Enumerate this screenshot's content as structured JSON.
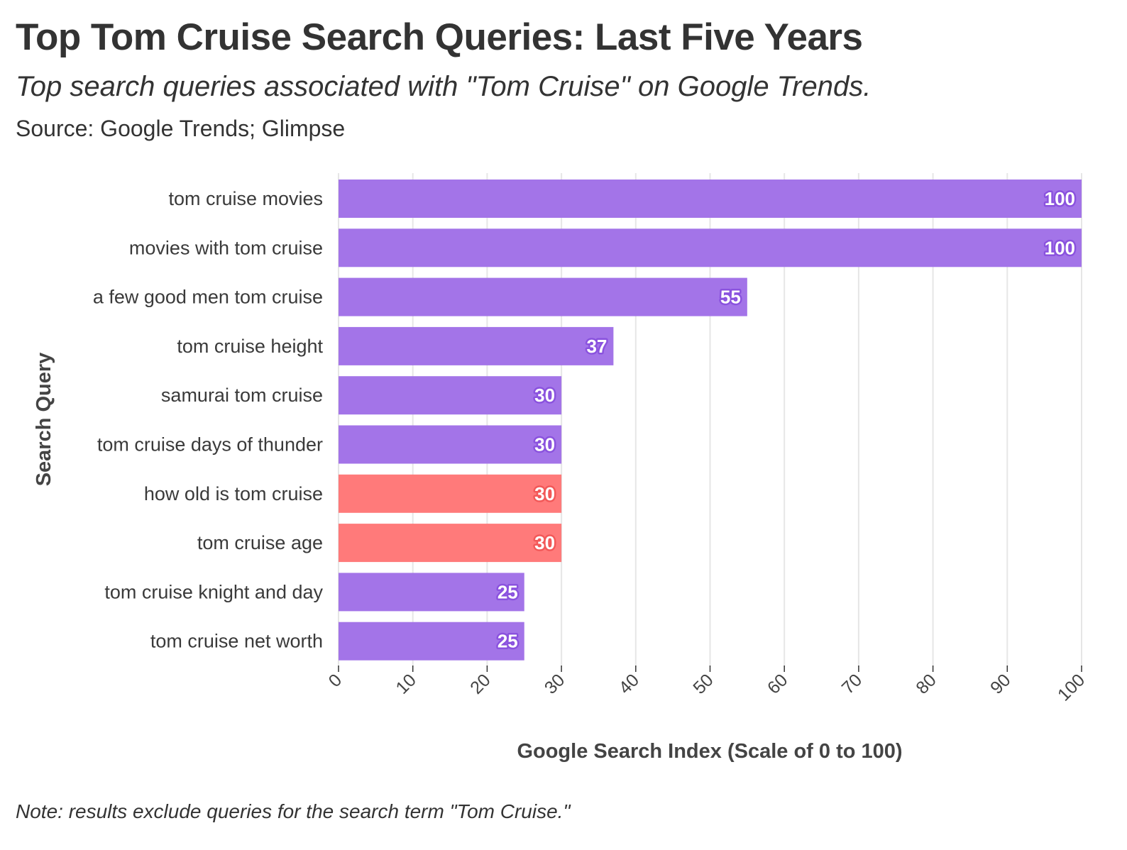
{
  "title": "Top Tom Cruise Search Queries: Last Five Years",
  "subtitle": "Top search queries associated with \"Tom Cruise\" on Google Trends.",
  "source": "Source: Google Trends; Glimpse",
  "note": "Note: results exclude queries for the search term \"Tom Cruise.\"",
  "colors": {
    "default": "#a374e8",
    "highlight": "#ff7a7a",
    "default_outline": "#8a52de",
    "highlight_outline": "#f25858",
    "grid": "#e6e6e6"
  },
  "chart_data": {
    "type": "bar",
    "orientation": "horizontal",
    "categories": [
      "tom cruise movies",
      "movies with tom cruise",
      "a few good men tom cruise",
      "tom cruise height",
      "samurai tom cruise",
      "tom cruise days of thunder",
      "how old is tom cruise",
      "tom cruise age",
      "tom cruise knight and day",
      "tom cruise net worth"
    ],
    "values": [
      100,
      100,
      55,
      37,
      30,
      30,
      30,
      30,
      25,
      25
    ],
    "highlighted": [
      false,
      false,
      false,
      false,
      false,
      false,
      true,
      true,
      false,
      false
    ],
    "xlabel": "Google Search Index (Scale of 0 to 100)",
    "ylabel": "Search Query",
    "xlim": [
      0,
      100
    ],
    "xticks": [
      0,
      10,
      20,
      30,
      40,
      50,
      60,
      70,
      80,
      90,
      100
    ],
    "grid": true,
    "legend": "none"
  }
}
